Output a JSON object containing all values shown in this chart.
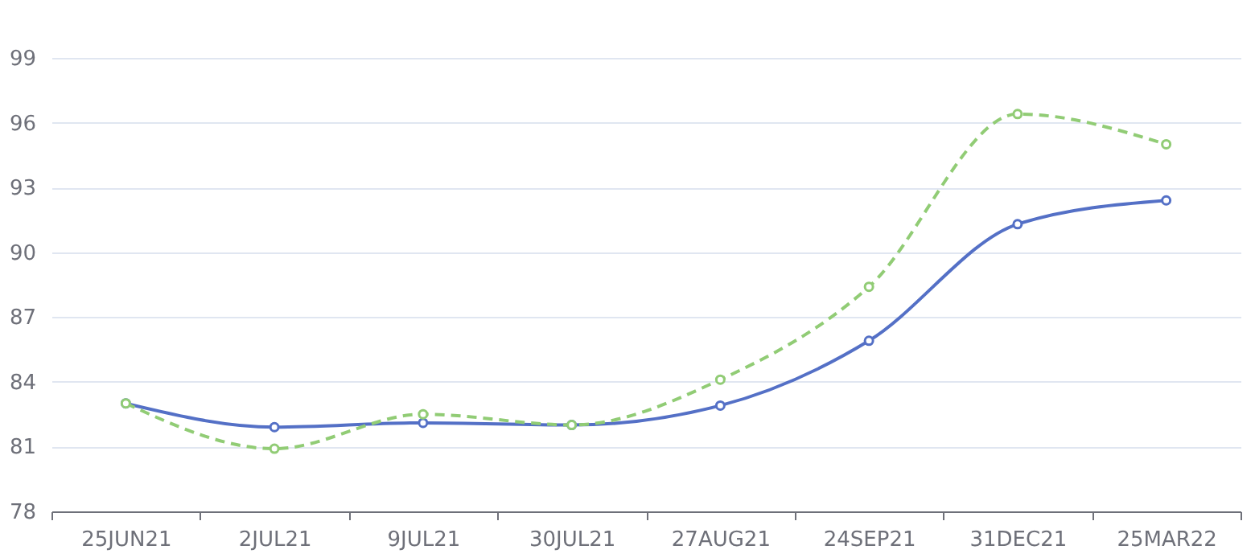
{
  "chart_data": {
    "type": "line",
    "categories": [
      "25JUN21",
      "2JUL21",
      "9JUL21",
      "30JUL21",
      "27AUG21",
      "24SEP21",
      "31DEC21",
      "25MAR22"
    ],
    "series": [
      {
        "color": "#5470c6",
        "line_style": "solid",
        "values": [
          83.0,
          81.9,
          82.1,
          82.0,
          82.9,
          85.9,
          91.3,
          92.4
        ]
      },
      {
        "color": "#91cc75",
        "line_style": "dashed",
        "values": [
          83.0,
          80.9,
          82.5,
          82.0,
          84.1,
          88.4,
          96.4,
          95.0
        ]
      }
    ],
    "ylim": [
      78,
      99
    ],
    "yticks": [
      78,
      81,
      84,
      87,
      90,
      93,
      96,
      99
    ],
    "grid": "y",
    "marker": "circle",
    "legend": false
  }
}
